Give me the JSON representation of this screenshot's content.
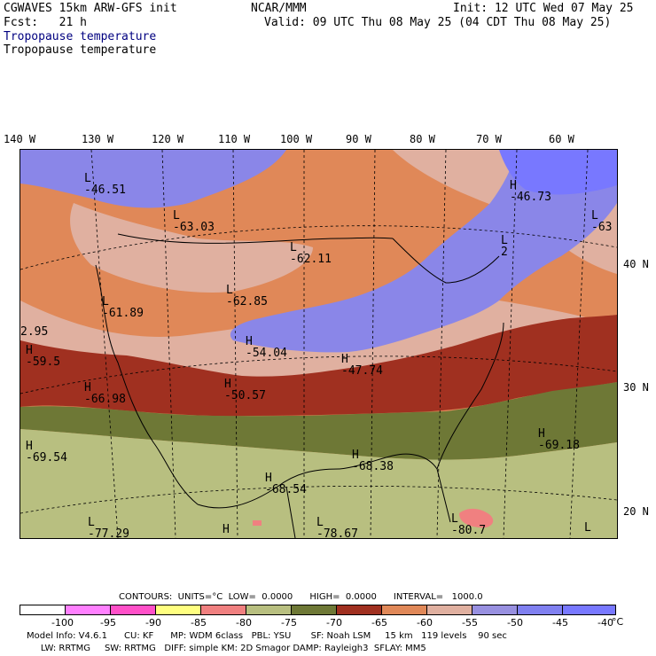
{
  "header": {
    "model": "CGWAVES 15km ARW-GFS init",
    "fcst": "Fcst:   21 h",
    "center": "NCAR/MMM",
    "init": "Init: 12 UTC Wed 07 May 25",
    "valid": "Valid: 09 UTC Thu 08 May 25 (04 CDT Thu 08 May 25)",
    "field_blue": "Tropopause temperature",
    "field_black": "Tropopause temperature"
  },
  "map": {
    "lon_labels": [
      "140 W",
      "130 W",
      "120 W",
      "110 W",
      "100 W",
      "90 W",
      "80 W",
      "70 W",
      "60 W"
    ],
    "lat_labels": [
      "40 N",
      "30 N",
      "20 N"
    ],
    "colors": {
      "c_m95": "#ff80ff",
      "c_m90": "#ff50c8",
      "c_m85": "#ffff80",
      "c_m80": "#f08080",
      "c_m75": "#b8bf80",
      "c_m70": "#6e7836",
      "c_m65": "#a03020",
      "c_m60": "#e08858",
      "c_m55": "#e0b0a0",
      "c_m50": "#9890e0",
      "c_m45": "#8080f0",
      "c_m40": "#7878ff"
    },
    "labels": [
      {
        "sym": "L",
        "val": "-46.51"
      },
      {
        "sym": "L",
        "val": "-63.03"
      },
      {
        "sym": "L",
        "val": "-62.11"
      },
      {
        "sym": "H",
        "val": "-46.73"
      },
      {
        "sym": "L",
        "val": "-63"
      },
      {
        "sym": "L",
        "val": "2"
      },
      {
        "sym": "L",
        "val": "-61.89"
      },
      {
        "sym": "L",
        "val": "-62.85"
      },
      {
        "sym": "",
        "val": "2.95"
      },
      {
        "sym": "H",
        "val": "-59.5"
      },
      {
        "sym": "H",
        "val": "-54.04"
      },
      {
        "sym": "H",
        "val": "-47.74"
      },
      {
        "sym": "H",
        "val": "-66.98"
      },
      {
        "sym": "H",
        "val": "-50.57"
      },
      {
        "sym": "H",
        "val": "-69.54"
      },
      {
        "sym": "H",
        "val": "-68.38"
      },
      {
        "sym": "H",
        "val": "-69.18"
      },
      {
        "sym": "H",
        "val": "-68.54"
      },
      {
        "sym": "L",
        "val": "-77.29"
      },
      {
        "sym": "L",
        "val": "-78.67"
      },
      {
        "sym": "H",
        "val": ""
      },
      {
        "sym": "L",
        "val": "-80.7"
      },
      {
        "sym": "L",
        "val": ""
      }
    ]
  },
  "contours": {
    "line": "CONTOURS:  UNITS=°C  LOW=  0.0000      HIGH=  0.0000      INTERVAL=   1000.0"
  },
  "legend": {
    "ticks": [
      "-100",
      "-95",
      "-90",
      "-85",
      "-80",
      "-75",
      "-70",
      "-65",
      "-60",
      "-55",
      "-50",
      "-45",
      "-40"
    ],
    "unit": "°C",
    "colors": [
      "#ffffff",
      "#ff80ff",
      "#ff50c8",
      "#ffff80",
      "#f08080",
      "#b8bf80",
      "#6e7836",
      "#a03020",
      "#e08858",
      "#e0b0a0",
      "#9890e0",
      "#8080f0",
      "#7878ff"
    ]
  },
  "footer": {
    "line1": "Model Info: V4.6.1      CU: KF      MP: WDM 6class   PBL: YSU       SF: Noah LSM     15 km   119 levels    90 sec",
    "line2": "     LW: RRTMG     SW: RRTMG   DIFF: simple KM: 2D Smagor DAMP: Rayleigh3  SFLAY: MM5"
  }
}
